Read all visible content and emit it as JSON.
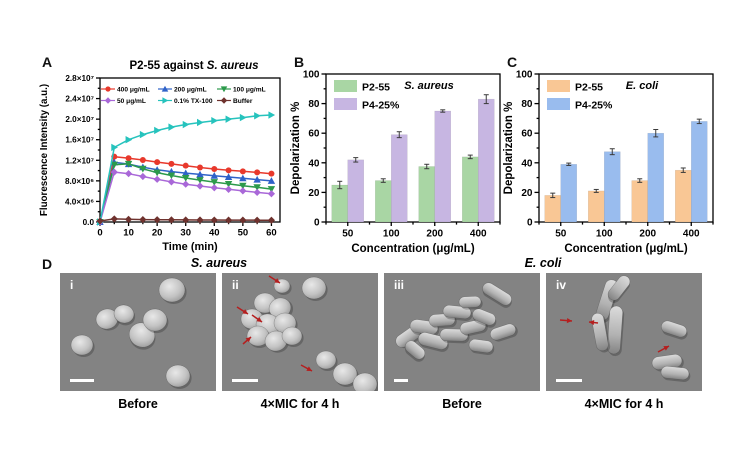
{
  "figure": {
    "panels": {
      "A": {
        "label": "A"
      },
      "B": {
        "label": "B"
      },
      "C": {
        "label": "C"
      },
      "D": {
        "label": "D",
        "groups": [
          {
            "title": "S. aureus"
          },
          {
            "title": "E. coli"
          }
        ],
        "images": [
          {
            "numeral": "i",
            "caption": "Before"
          },
          {
            "numeral": "ii",
            "caption": "4×MIC for 4 h"
          },
          {
            "numeral": "iii",
            "caption": "Before"
          },
          {
            "numeral": "iv",
            "caption": "4×MIC for 4 h"
          }
        ]
      }
    }
  },
  "chart_data": [
    {
      "id": "A",
      "type": "line",
      "title_main": "P2-55 against",
      "title_italic": "S. aureus",
      "xlabel": "Time (min)",
      "ylabel": "Fluorescence Intensity (a.u.)",
      "xlim": [
        0,
        63
      ],
      "ylim": [
        0,
        28000000
      ],
      "xticks": [
        0,
        10,
        20,
        30,
        40,
        50,
        60
      ],
      "x_minor_step": 5,
      "yticks": [
        0,
        4000000,
        8000000,
        12000000,
        16000000,
        20000000,
        24000000,
        28000000
      ],
      "ytick_labels": [
        "0.0",
        "4.0×10⁶",
        "8.0×10⁶",
        "1.2×10⁷",
        "1.6×10⁷",
        "2.0×10⁷",
        "2.4×10⁷",
        "2.8×10⁷"
      ],
      "x": [
        0,
        5,
        10,
        15,
        20,
        25,
        30,
        35,
        40,
        45,
        50,
        55,
        60
      ],
      "series": [
        {
          "name": "400 μg/mL",
          "color": "#e8392c",
          "marker": "circle",
          "values": [
            0,
            12700000,
            12400000,
            12050000,
            11650000,
            11300000,
            10950000,
            10600000,
            10300000,
            10050000,
            9850000,
            9650000,
            9400000
          ]
        },
        {
          "name": "200 μg/mL",
          "color": "#2f62c8",
          "marker": "triangle-up",
          "values": [
            0,
            11600000,
            11250000,
            10650000,
            10150000,
            9800000,
            9500000,
            9250000,
            9000000,
            8750000,
            8500000,
            8250000,
            8000000
          ]
        },
        {
          "name": "100 μg/mL",
          "color": "#2c9a4b",
          "marker": "triangle-down",
          "values": [
            0,
            11150000,
            11300000,
            10350000,
            9600000,
            9050000,
            8550000,
            8150000,
            7750000,
            7400000,
            7050000,
            6750000,
            6400000
          ]
        },
        {
          "name": "50 μg/mL",
          "color": "#a968d8",
          "marker": "diamond",
          "values": [
            0,
            9700000,
            9400000,
            8850000,
            8300000,
            7800000,
            7350000,
            7000000,
            6650000,
            6350000,
            6050000,
            5750000,
            5500000
          ]
        },
        {
          "name": "0.1% TX-100",
          "color": "#26c3bd",
          "marker": "triangle-right",
          "values": [
            0,
            14500000,
            16000000,
            17000000,
            17800000,
            18450000,
            18950000,
            19350000,
            19700000,
            20000000,
            20300000,
            20650000,
            20800000
          ]
        },
        {
          "name": "Buffer",
          "color": "#6f322e",
          "marker": "diamond",
          "values": [
            200000,
            600000,
            520000,
            470000,
            440000,
            420000,
            400000,
            390000,
            380000,
            370000,
            360000,
            350000,
            340000
          ]
        }
      ],
      "legend_layout": [
        [
          "400 μg/mL",
          "200 μg/mL",
          "100 μg/mL"
        ],
        [
          "50 μg/mL",
          "0.1% TX-100",
          "Buffer"
        ]
      ],
      "legend_position": "top-inside",
      "grid": false
    },
    {
      "id": "B",
      "type": "bar",
      "title_italic": "S. aureus",
      "xlabel": "Concentration (μg/mL)",
      "ylabel": "Depolarization %",
      "ylim": [
        0,
        100
      ],
      "yticks": [
        0,
        20,
        40,
        60,
        80,
        100
      ],
      "categories": [
        "50",
        "100",
        "200",
        "400"
      ],
      "series": [
        {
          "name": "P2-55",
          "color": "#a9d6a4",
          "values": [
            25,
            28,
            37.5,
            44
          ],
          "errors": [
            2.5,
            1.2,
            1.5,
            1.2
          ]
        },
        {
          "name": "P4-25%",
          "color": "#c7b6e2",
          "values": [
            42,
            59,
            75,
            83
          ],
          "errors": [
            1.5,
            2.0,
            0.8,
            3.0
          ]
        }
      ],
      "legend_position": "top-left-inside",
      "grid": false
    },
    {
      "id": "C",
      "type": "bar",
      "title_italic": "E. coli",
      "xlabel": "Concentration (μg/mL)",
      "ylabel": "Depolarization %",
      "ylim": [
        0,
        100
      ],
      "yticks": [
        0,
        20,
        40,
        60,
        80,
        100
      ],
      "categories": [
        "50",
        "100",
        "200",
        "400"
      ],
      "series": [
        {
          "name": "P2-55",
          "color": "#f9c795",
          "values": [
            18,
            21,
            28,
            35
          ],
          "errors": [
            1.5,
            1.0,
            1.2,
            1.5
          ]
        },
        {
          "name": "P4-25%",
          "color": "#99bcee",
          "values": [
            39,
            47.5,
            60,
            68
          ],
          "errors": [
            0.8,
            2.0,
            2.5,
            1.5
          ]
        }
      ],
      "legend_position": "top-left-inside",
      "grid": false
    }
  ]
}
